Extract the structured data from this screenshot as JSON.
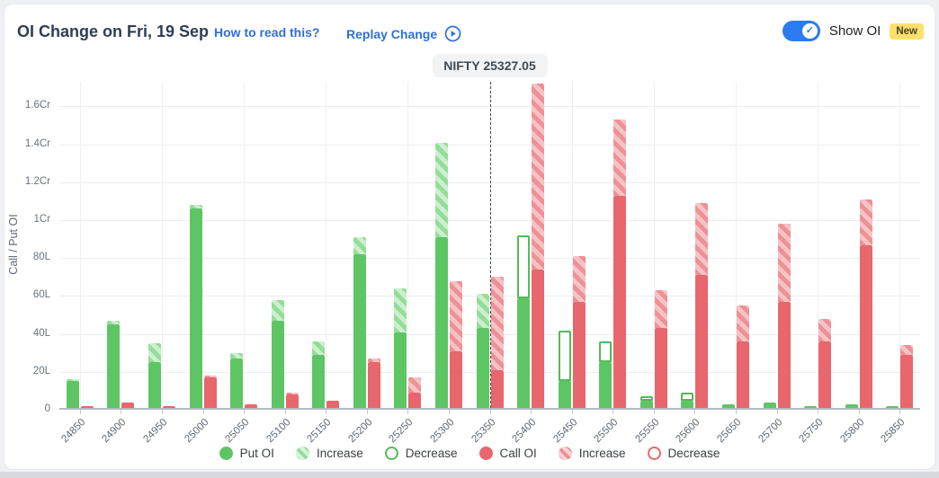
{
  "header": {
    "title": "OI Change on Fri, 19 Sep",
    "how_to_read": "How to read this?",
    "replay": "Replay Change",
    "show_oi": "Show OI",
    "new_badge": "New"
  },
  "colors": {
    "accent_blue": "#2e6fdb",
    "toggle_blue": "#2b7cf0",
    "badge_yellow": "#fce06a",
    "put_green": "#5ec565",
    "call_red": "#e7676d"
  },
  "legend": {
    "items": [
      {
        "label": "Put OI",
        "swatch": "put-solid"
      },
      {
        "label": "Increase",
        "swatch": "put-hatch"
      },
      {
        "label": "Decrease",
        "swatch": "put-dec"
      },
      {
        "label": "Call OI",
        "swatch": "call-solid"
      },
      {
        "label": "Increase",
        "swatch": "call-hatch"
      },
      {
        "label": "Decrease",
        "swatch": "call-dec"
      }
    ]
  },
  "chart_data": {
    "type": "bar",
    "title": "OI Change on Fri, 19 Sep",
    "ylabel": "Call / Put OI",
    "unit": "values in Lakh; 1Cr = 100L",
    "ylim": [
      0,
      175
    ],
    "grid": true,
    "y_ticks": [
      {
        "label": "0",
        "v": 0
      },
      {
        "label": "20L",
        "v": 20
      },
      {
        "label": "40L",
        "v": 40
      },
      {
        "label": "60L",
        "v": 60
      },
      {
        "label": "80L",
        "v": 80
      },
      {
        "label": "1Cr",
        "v": 100
      },
      {
        "label": "1.2Cr",
        "v": 120
      },
      {
        "label": "1.4Cr",
        "v": 140
      },
      {
        "label": "1.6Cr",
        "v": 160
      }
    ],
    "categories": [
      24850,
      24900,
      24950,
      25000,
      25050,
      25100,
      25150,
      25200,
      25250,
      25300,
      25350,
      25400,
      25450,
      25500,
      25550,
      25600,
      25650,
      25700,
      25750,
      25800,
      25850
    ],
    "series": [
      {
        "name": "Put OI",
        "color": "#5ec565",
        "values": [
          {
            "oi": 15,
            "inc": 1,
            "dec": 0
          },
          {
            "oi": 46,
            "inc": 2,
            "dec": 0
          },
          {
            "oi": 34,
            "inc": 10,
            "dec": 0
          },
          {
            "oi": 107,
            "inc": 2,
            "dec": 0
          },
          {
            "oi": 29,
            "inc": 3,
            "dec": 0
          },
          {
            "oi": 57,
            "inc": 11,
            "dec": 0
          },
          {
            "oi": 35,
            "inc": 7,
            "dec": 0
          },
          {
            "oi": 90,
            "inc": 9,
            "dec": 0
          },
          {
            "oi": 63,
            "inc": 23,
            "dec": 0
          },
          {
            "oi": 140,
            "inc": 50,
            "dec": 0
          },
          {
            "oi": 60,
            "inc": 18,
            "dec": 0
          },
          {
            "oi": 58,
            "inc": 0,
            "dec": 33
          },
          {
            "oi": 14,
            "inc": 0,
            "dec": 27
          },
          {
            "oi": 24,
            "inc": 0,
            "dec": 11
          },
          {
            "oi": 4,
            "inc": 0,
            "dec": 2
          },
          {
            "oi": 4,
            "inc": 0,
            "dec": 4
          },
          {
            "oi": 2,
            "inc": 0,
            "dec": 0
          },
          {
            "oi": 3,
            "inc": 0,
            "dec": 0
          },
          {
            "oi": 1,
            "inc": 0,
            "dec": 0
          },
          {
            "oi": 2,
            "inc": 0,
            "dec": 0
          },
          {
            "oi": 1,
            "inc": 0,
            "dec": 0
          }
        ]
      },
      {
        "name": "Call OI",
        "color": "#e7676d",
        "values": [
          {
            "oi": 1,
            "inc": 0,
            "dec": 0
          },
          {
            "oi": 3,
            "inc": 0,
            "dec": 0
          },
          {
            "oi": 1,
            "inc": 0,
            "dec": 0
          },
          {
            "oi": 17,
            "inc": 1,
            "dec": 0
          },
          {
            "oi": 2,
            "inc": 0,
            "dec": 0
          },
          {
            "oi": 8,
            "inc": 1,
            "dec": 0
          },
          {
            "oi": 4,
            "inc": 0,
            "dec": 0
          },
          {
            "oi": 26,
            "inc": 2,
            "dec": 0
          },
          {
            "oi": 16,
            "inc": 8,
            "dec": 0
          },
          {
            "oi": 67,
            "inc": 37,
            "dec": 0
          },
          {
            "oi": 69,
            "inc": 49,
            "dec": 0
          },
          {
            "oi": 171,
            "inc": 98,
            "dec": 0
          },
          {
            "oi": 80,
            "inc": 24,
            "dec": 0
          },
          {
            "oi": 152,
            "inc": 40,
            "dec": 0
          },
          {
            "oi": 62,
            "inc": 20,
            "dec": 0
          },
          {
            "oi": 108,
            "inc": 38,
            "dec": 0
          },
          {
            "oi": 54,
            "inc": 19,
            "dec": 0
          },
          {
            "oi": 97,
            "inc": 41,
            "dec": 0
          },
          {
            "oi": 47,
            "inc": 12,
            "dec": 0
          },
          {
            "oi": 110,
            "inc": 24,
            "dec": 0
          },
          {
            "oi": 33,
            "inc": 5,
            "dec": 0
          }
        ]
      }
    ],
    "nifty_marker": {
      "label": "NIFTY 25327.05",
      "value": 25327.05,
      "at_index": 10
    },
    "legend_position": "bottom"
  }
}
